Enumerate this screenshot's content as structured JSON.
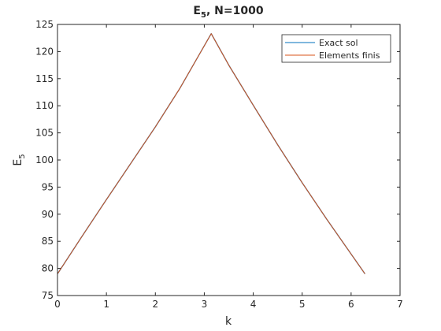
{
  "chart_data": {
    "type": "line",
    "title": {
      "main": "E",
      "sub": "5",
      "rest": ", N=1000"
    },
    "xlabel": "k",
    "ylabel": {
      "main": "E",
      "sub": "5"
    },
    "xlim": [
      0,
      7
    ],
    "ylim": [
      75,
      125
    ],
    "xticks": [
      "0",
      "1",
      "2",
      "3",
      "4",
      "5",
      "6",
      "7"
    ],
    "yticks": [
      "75",
      "80",
      "85",
      "90",
      "95",
      "100",
      "105",
      "110",
      "115",
      "120",
      "125"
    ],
    "grid": false,
    "legend_position": "top-right",
    "series": [
      {
        "name": "Exact sol",
        "color": "#0072BD",
        "x": [
          0,
          0.5,
          1.0,
          1.5,
          2.0,
          2.5,
          3.1416,
          3.5,
          4.0,
          4.5,
          5.0,
          5.5,
          6.2832
        ],
        "y": [
          79.0,
          85.9,
          92.7,
          99.4,
          106.1,
          113.2,
          123.3,
          117.5,
          110.1,
          102.8,
          95.8,
          89.1,
          79.0
        ]
      },
      {
        "name": "Elements finis",
        "color": "#D95319",
        "x": [
          0,
          0.5,
          1.0,
          1.5,
          2.0,
          2.5,
          3.1416,
          3.5,
          4.0,
          4.5,
          5.0,
          5.5,
          6.2832
        ],
        "y": [
          79.0,
          85.9,
          92.7,
          99.4,
          106.1,
          113.2,
          123.3,
          117.5,
          110.1,
          102.8,
          95.8,
          89.1,
          79.0
        ]
      }
    ]
  }
}
